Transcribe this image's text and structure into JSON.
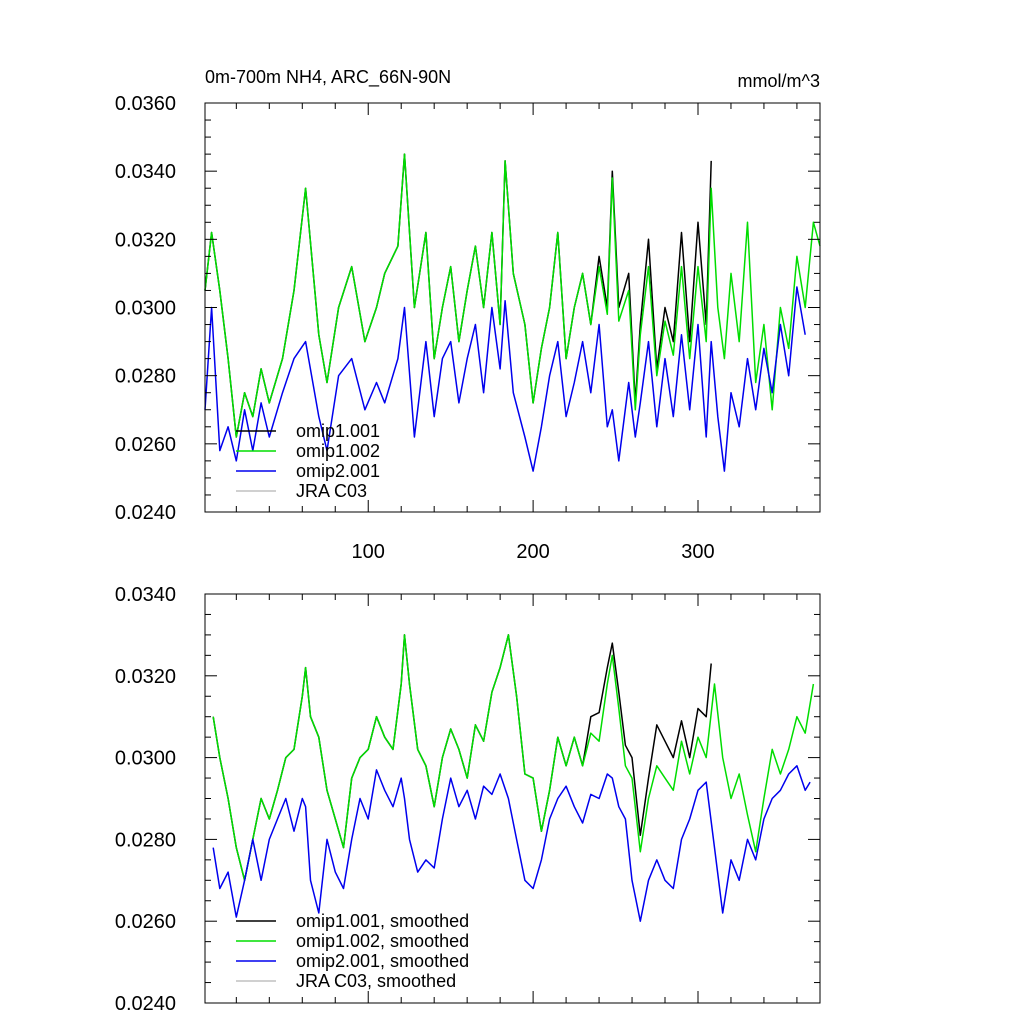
{
  "chart_data": [
    {
      "type": "line",
      "title_left": "0m-700m NH4, ARC_66N-90N",
      "title_right": "mmol/m^3",
      "xlim": [
        1,
        374
      ],
      "ylim": [
        0.024,
        0.036
      ],
      "x_ticks": [
        100,
        200,
        300
      ],
      "x_tick_labels": [
        "100",
        "200",
        "300"
      ],
      "y_ticks": [
        0.024,
        0.026,
        0.028,
        0.03,
        0.032,
        0.034,
        0.036
      ],
      "y_tick_labels": [
        "0.0240",
        "0.0260",
        "0.0280",
        "0.0300",
        "0.0320",
        "0.0340",
        "0.0360"
      ],
      "grid": false,
      "legend_position": "bottom-left",
      "series": [
        {
          "name": "omip1.001",
          "color": "#000000",
          "x": [
            1,
            5,
            10,
            15,
            20,
            25,
            30,
            35,
            40,
            48,
            55,
            62,
            70,
            75,
            82,
            90,
            98,
            105,
            110,
            118,
            122,
            128,
            135,
            140,
            145,
            150,
            155,
            160,
            165,
            170,
            175,
            180,
            183,
            188,
            195,
            200,
            205,
            210,
            215,
            220,
            225,
            230,
            235,
            240,
            245,
            248,
            252,
            258,
            262,
            265,
            270,
            275,
            280,
            285,
            290,
            295,
            300,
            305,
            308
          ],
          "y": [
            0.0305,
            0.0322,
            0.0305,
            0.0285,
            0.0262,
            0.0275,
            0.0268,
            0.0282,
            0.0272,
            0.0285,
            0.0305,
            0.0335,
            0.0292,
            0.0278,
            0.03,
            0.0312,
            0.029,
            0.03,
            0.031,
            0.0318,
            0.0345,
            0.03,
            0.0322,
            0.0285,
            0.03,
            0.0312,
            0.029,
            0.0305,
            0.0318,
            0.03,
            0.0322,
            0.0295,
            0.0343,
            0.031,
            0.0295,
            0.0272,
            0.0288,
            0.03,
            0.0322,
            0.0285,
            0.03,
            0.031,
            0.0295,
            0.0315,
            0.03,
            0.034,
            0.03,
            0.031,
            0.0272,
            0.0295,
            0.032,
            0.0282,
            0.03,
            0.029,
            0.0322,
            0.029,
            0.0325,
            0.0295,
            0.0343
          ]
        },
        {
          "name": "omip1.002",
          "color": "#00dd00",
          "x": [
            1,
            5,
            10,
            15,
            20,
            25,
            30,
            35,
            40,
            48,
            55,
            62,
            70,
            75,
            82,
            90,
            98,
            105,
            110,
            118,
            122,
            128,
            135,
            140,
            145,
            150,
            155,
            160,
            165,
            170,
            175,
            180,
            183,
            188,
            195,
            200,
            205,
            210,
            215,
            220,
            225,
            230,
            235,
            240,
            245,
            248,
            252,
            258,
            262,
            265,
            270,
            275,
            280,
            285,
            290,
            295,
            300,
            305,
            308,
            312,
            316,
            320,
            325,
            330,
            335,
            340,
            345,
            350,
            355,
            360,
            365,
            370,
            374
          ],
          "y": [
            0.0305,
            0.0322,
            0.0305,
            0.0285,
            0.0262,
            0.0275,
            0.0268,
            0.0282,
            0.0272,
            0.0285,
            0.0305,
            0.0335,
            0.0292,
            0.0278,
            0.03,
            0.0312,
            0.029,
            0.03,
            0.031,
            0.0318,
            0.0345,
            0.03,
            0.0322,
            0.0285,
            0.03,
            0.0312,
            0.029,
            0.0305,
            0.0318,
            0.03,
            0.0322,
            0.0295,
            0.0343,
            0.031,
            0.0295,
            0.0272,
            0.0288,
            0.03,
            0.0322,
            0.0285,
            0.03,
            0.031,
            0.0295,
            0.0312,
            0.0298,
            0.0338,
            0.0296,
            0.0305,
            0.027,
            0.0292,
            0.0312,
            0.028,
            0.0296,
            0.0286,
            0.0312,
            0.0285,
            0.0312,
            0.029,
            0.0335,
            0.03,
            0.0285,
            0.031,
            0.029,
            0.0325,
            0.0278,
            0.0295,
            0.027,
            0.03,
            0.0288,
            0.0315,
            0.03,
            0.0325,
            0.0318
          ]
        },
        {
          "name": "omip2.001",
          "color": "#0000ee",
          "x": [
            1,
            5,
            10,
            15,
            20,
            25,
            30,
            35,
            40,
            48,
            55,
            62,
            70,
            75,
            82,
            90,
            98,
            105,
            110,
            118,
            122,
            128,
            135,
            140,
            145,
            150,
            155,
            160,
            165,
            170,
            175,
            180,
            183,
            188,
            195,
            200,
            205,
            210,
            215,
            220,
            225,
            230,
            235,
            240,
            245,
            248,
            252,
            258,
            262,
            265,
            270,
            275,
            280,
            285,
            290,
            295,
            300,
            305,
            308,
            312,
            316,
            320,
            325,
            330,
            335,
            340,
            345,
            350,
            355,
            360,
            365
          ],
          "y": [
            0.027,
            0.03,
            0.0258,
            0.0265,
            0.0255,
            0.027,
            0.0258,
            0.0272,
            0.0262,
            0.0275,
            0.0285,
            0.029,
            0.0268,
            0.0258,
            0.028,
            0.0285,
            0.027,
            0.0278,
            0.0272,
            0.0285,
            0.03,
            0.0262,
            0.029,
            0.0268,
            0.0285,
            0.029,
            0.0272,
            0.0285,
            0.0295,
            0.0275,
            0.03,
            0.0282,
            0.0302,
            0.0275,
            0.0262,
            0.0252,
            0.0265,
            0.028,
            0.029,
            0.0268,
            0.0278,
            0.029,
            0.0275,
            0.0295,
            0.0265,
            0.027,
            0.0255,
            0.0278,
            0.0262,
            0.0272,
            0.029,
            0.0265,
            0.0285,
            0.0268,
            0.0292,
            0.027,
            0.0295,
            0.0262,
            0.029,
            0.0268,
            0.0252,
            0.0275,
            0.0265,
            0.0285,
            0.027,
            0.0288,
            0.0275,
            0.0295,
            0.028,
            0.0306,
            0.0292
          ]
        },
        {
          "name": "JRA C03",
          "color": "#c0c0c0",
          "x": [],
          "y": []
        }
      ]
    },
    {
      "type": "line",
      "xlim": [
        1,
        374
      ],
      "ylim": [
        0.024,
        0.034
      ],
      "x_ticks": [
        100,
        200,
        300
      ],
      "y_ticks": [
        0.024,
        0.026,
        0.028,
        0.03,
        0.032,
        0.034
      ],
      "y_tick_labels": [
        "0.0240",
        "0.0260",
        "0.0280",
        "0.0300",
        "0.0320",
        "0.0340"
      ],
      "grid": false,
      "legend_position": "bottom-left",
      "series": [
        {
          "name": "omip1.001, smoothed",
          "color": "#000000",
          "x": [
            6,
            10,
            15,
            20,
            25,
            30,
            35,
            40,
            45,
            50,
            55,
            60,
            62,
            65,
            70,
            75,
            80,
            85,
            90,
            95,
            100,
            105,
            110,
            115,
            120,
            122,
            125,
            130,
            135,
            140,
            145,
            150,
            155,
            160,
            165,
            170,
            175,
            180,
            185,
            190,
            195,
            200,
            205,
            210,
            215,
            220,
            225,
            230,
            235,
            240,
            245,
            248,
            252,
            256,
            260,
            265,
            270,
            275,
            280,
            285,
            290,
            295,
            300,
            305,
            308
          ],
          "y": [
            0.031,
            0.03,
            0.029,
            0.0278,
            0.027,
            0.028,
            0.029,
            0.0285,
            0.0292,
            0.03,
            0.0302,
            0.0315,
            0.0322,
            0.031,
            0.0305,
            0.0292,
            0.0285,
            0.0278,
            0.0295,
            0.03,
            0.0302,
            0.031,
            0.0305,
            0.0302,
            0.0318,
            0.033,
            0.0318,
            0.0302,
            0.0298,
            0.0288,
            0.03,
            0.0307,
            0.0302,
            0.0295,
            0.0308,
            0.0304,
            0.0316,
            0.0322,
            0.033,
            0.0315,
            0.0296,
            0.0295,
            0.0282,
            0.0292,
            0.0305,
            0.0298,
            0.0305,
            0.0298,
            0.031,
            0.0311,
            0.0322,
            0.0328,
            0.0316,
            0.0303,
            0.03,
            0.0281,
            0.0295,
            0.0308,
            0.0304,
            0.03,
            0.0309,
            0.03,
            0.0312,
            0.031,
            0.0323
          ]
        },
        {
          "name": "omip1.002, smoothed",
          "color": "#00dd00",
          "x": [
            6,
            10,
            15,
            20,
            25,
            30,
            35,
            40,
            45,
            50,
            55,
            60,
            62,
            65,
            70,
            75,
            80,
            85,
            90,
            95,
            100,
            105,
            110,
            115,
            120,
            122,
            125,
            130,
            135,
            140,
            145,
            150,
            155,
            160,
            165,
            170,
            175,
            180,
            185,
            190,
            195,
            200,
            205,
            210,
            215,
            220,
            225,
            230,
            235,
            240,
            245,
            248,
            252,
            256,
            260,
            265,
            270,
            275,
            280,
            285,
            290,
            295,
            300,
            305,
            310,
            315,
            320,
            325,
            330,
            335,
            340,
            345,
            350,
            355,
            360,
            365,
            370
          ],
          "y": [
            0.031,
            0.03,
            0.029,
            0.0278,
            0.027,
            0.028,
            0.029,
            0.0285,
            0.0292,
            0.03,
            0.0302,
            0.0315,
            0.0322,
            0.031,
            0.0305,
            0.0292,
            0.0285,
            0.0278,
            0.0295,
            0.03,
            0.0302,
            0.031,
            0.0305,
            0.0302,
            0.0318,
            0.033,
            0.0318,
            0.0302,
            0.0298,
            0.0288,
            0.03,
            0.0307,
            0.0302,
            0.0295,
            0.0308,
            0.0304,
            0.0316,
            0.0322,
            0.033,
            0.0315,
            0.0296,
            0.0295,
            0.0282,
            0.0292,
            0.0305,
            0.0298,
            0.0305,
            0.0298,
            0.0306,
            0.0304,
            0.0318,
            0.0325,
            0.0312,
            0.0298,
            0.0295,
            0.0277,
            0.029,
            0.0298,
            0.0295,
            0.0292,
            0.0304,
            0.0296,
            0.0305,
            0.03,
            0.0318,
            0.03,
            0.029,
            0.0296,
            0.0286,
            0.0277,
            0.029,
            0.0302,
            0.0296,
            0.0302,
            0.031,
            0.0306,
            0.0318
          ]
        },
        {
          "name": "omip2.001, smoothed",
          "color": "#0000ee",
          "x": [
            6,
            10,
            15,
            20,
            25,
            30,
            35,
            40,
            45,
            50,
            55,
            60,
            62,
            65,
            70,
            75,
            80,
            85,
            90,
            95,
            100,
            105,
            110,
            115,
            120,
            122,
            125,
            130,
            135,
            140,
            145,
            150,
            155,
            160,
            165,
            170,
            175,
            180,
            185,
            190,
            195,
            200,
            205,
            210,
            215,
            220,
            225,
            230,
            235,
            240,
            245,
            248,
            252,
            256,
            260,
            265,
            270,
            275,
            280,
            285,
            290,
            295,
            300,
            305,
            310,
            315,
            320,
            325,
            330,
            335,
            340,
            345,
            350,
            355,
            360,
            365,
            368
          ],
          "y": [
            0.0278,
            0.0268,
            0.0272,
            0.0261,
            0.027,
            0.028,
            0.027,
            0.028,
            0.0285,
            0.029,
            0.0282,
            0.029,
            0.0288,
            0.027,
            0.0262,
            0.028,
            0.0272,
            0.0268,
            0.028,
            0.029,
            0.0285,
            0.0297,
            0.0292,
            0.0288,
            0.0295,
            0.029,
            0.028,
            0.0272,
            0.0275,
            0.0273,
            0.0285,
            0.0295,
            0.0288,
            0.0292,
            0.0285,
            0.0293,
            0.0291,
            0.0296,
            0.029,
            0.028,
            0.027,
            0.0268,
            0.0275,
            0.0285,
            0.029,
            0.0293,
            0.0288,
            0.0284,
            0.0291,
            0.029,
            0.0296,
            0.0295,
            0.0288,
            0.0285,
            0.027,
            0.026,
            0.027,
            0.0275,
            0.027,
            0.0268,
            0.028,
            0.0285,
            0.0292,
            0.0294,
            0.0278,
            0.0262,
            0.0275,
            0.027,
            0.028,
            0.0275,
            0.0285,
            0.029,
            0.0292,
            0.0296,
            0.0298,
            0.0292,
            0.0294
          ]
        },
        {
          "name": "JRA C03, smoothed",
          "color": "#c0c0c0",
          "x": [],
          "y": []
        }
      ]
    }
  ]
}
